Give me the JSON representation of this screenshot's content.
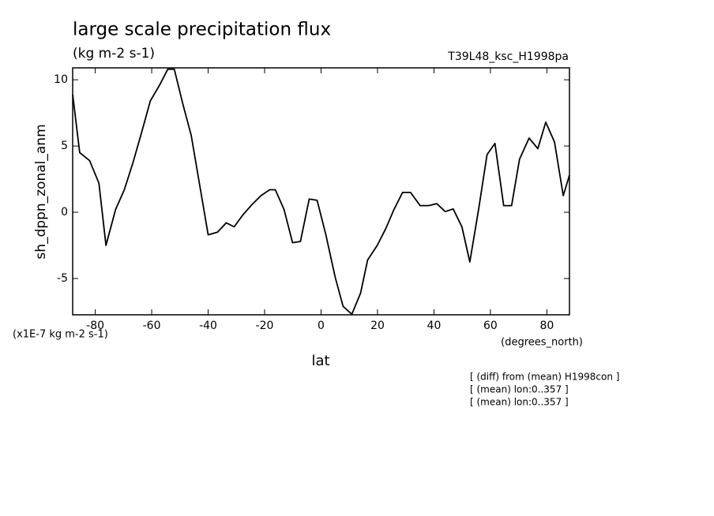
{
  "chart_data": {
    "type": "line",
    "title": "large scale precipitation flux",
    "subtitle": "(kg m-2 s-1)",
    "experiment": "T39L48_ksc_H1998pa",
    "ylabel": "sh_dppn_zonal_anm",
    "yunits": "(x1E-7 kg m-2 s-1)",
    "xunits": "(degrees_north)",
    "xlabel": "lat",
    "notes": [
      "[ (diff) from (mean) H1998con ]",
      "[ (mean) lon:0..357 ]",
      "[ (mean) lon:0..357 ]"
    ],
    "color": "#000000",
    "x": [
      -88,
      -85.5,
      -82,
      -78.7,
      -76.2,
      -72.8,
      -69.7,
      -66.7,
      -63.6,
      -60.5,
      -57.2,
      -54.3,
      -52,
      -49,
      -46,
      -40,
      -36.7,
      -33.6,
      -30.8,
      -27.7,
      -24.4,
      -21.3,
      -18.2,
      -16.2,
      -13.1,
      -10.1,
      -7.3,
      -4.2,
      -1.4,
      1.7,
      5,
      7.8,
      10.9,
      14,
      16.5,
      19.9,
      23,
      25.8,
      28.9,
      31.7,
      35.1,
      38.1,
      41,
      44,
      46.8,
      49.9,
      52.7,
      55.8,
      58.8,
      61.6,
      64.7,
      67.5,
      70.3,
      73.7,
      76.8,
      79.6,
      82.7,
      85.8,
      88
    ],
    "values": [
      8.9,
      4.5,
      3.9,
      2.2,
      -2.5,
      0.2,
      1.7,
      3.7,
      6.0,
      8.4,
      9.6,
      10.8,
      10.8,
      8.2,
      5.8,
      -1.7,
      -1.5,
      -0.8,
      -1.1,
      -0.2,
      0.6,
      1.25,
      1.7,
      1.7,
      0.2,
      -2.3,
      -2.2,
      1.0,
      0.9,
      -1.7,
      -4.9,
      -7.1,
      -7.7,
      -6.1,
      -3.6,
      -2.5,
      -1.2,
      0.2,
      1.5,
      1.5,
      0.5,
      0.5,
      0.65,
      0.05,
      0.25,
      -1.1,
      -3.75,
      0.2,
      4.35,
      5.2,
      0.5,
      0.5,
      4.0,
      5.6,
      4.8,
      6.8,
      5.3,
      1.25,
      2.8
    ],
    "xlim": [
      -88,
      88
    ],
    "ylim": [
      -7.74,
      10.9
    ],
    "xticks": [
      -80,
      -60,
      -40,
      -20,
      0,
      20,
      40,
      60,
      80
    ],
    "yticks": [
      -5,
      0,
      5,
      10
    ]
  }
}
